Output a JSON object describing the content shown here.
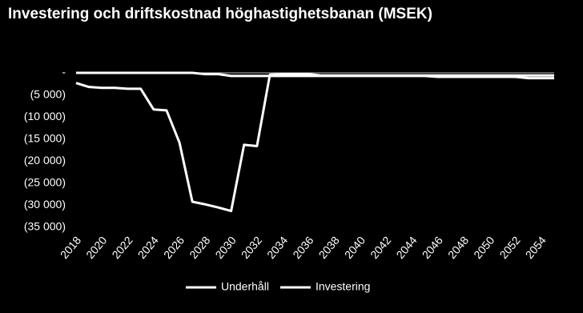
{
  "chart_data": {
    "type": "line",
    "title": "Investering och driftskostnad höghastighetsbanan (MSEK)",
    "x": [
      2018,
      2019,
      2020,
      2021,
      2022,
      2023,
      2024,
      2025,
      2026,
      2027,
      2028,
      2029,
      2030,
      2031,
      2032,
      2033,
      2034,
      2035,
      2036,
      2037,
      2038,
      2039,
      2040,
      2041,
      2042,
      2043,
      2044,
      2045,
      2046,
      2047,
      2048,
      2049,
      2050,
      2051,
      2052,
      2053,
      2054,
      2055
    ],
    "xlim": [
      2018,
      2055
    ],
    "xticks": [
      2018,
      2020,
      2022,
      2024,
      2026,
      2028,
      2030,
      2032,
      2034,
      2036,
      2038,
      2040,
      2042,
      2044,
      2046,
      2048,
      2050,
      2052,
      2054
    ],
    "ylim": [
      -35000,
      0
    ],
    "yticks": [
      {
        "value": 0,
        "label": "-"
      },
      {
        "value": -5000,
        "label": "(5 000)"
      },
      {
        "value": -10000,
        "label": "(10 000)"
      },
      {
        "value": -15000,
        "label": "(15 000)"
      },
      {
        "value": -20000,
        "label": "(20 000)"
      },
      {
        "value": -25000,
        "label": "(25 000)"
      },
      {
        "value": -30000,
        "label": "(30 000)"
      },
      {
        "value": -35000,
        "label": "(35 000)"
      }
    ],
    "series": [
      {
        "name": "Underhåll",
        "color": "#ffffff",
        "values": [
          0,
          0,
          0,
          0,
          0,
          0,
          0,
          0,
          0,
          0,
          -300,
          -300,
          -700,
          -700,
          -700,
          -700,
          -700,
          -700,
          -700,
          -700,
          -700,
          -700,
          -700,
          -700,
          -700,
          -700,
          -700,
          -700,
          -900,
          -900,
          -900,
          -900,
          -900,
          -900,
          -900,
          -1200,
          -1200,
          -1200
        ]
      },
      {
        "name": "Investering",
        "color": "#ffffff",
        "values": [
          -2300,
          -3200,
          -3400,
          -3400,
          -3600,
          -3600,
          -8300,
          -8500,
          -15800,
          -29200,
          -29800,
          -30500,
          -31300,
          -16300,
          -16600,
          -400,
          -300,
          -300,
          -300,
          -600,
          -600,
          -600,
          -600,
          -600,
          -600,
          -600,
          -600,
          -600,
          -600,
          -600,
          -600,
          -600,
          -600,
          -600,
          -600,
          -600,
          -600,
          -600
        ]
      }
    ]
  }
}
